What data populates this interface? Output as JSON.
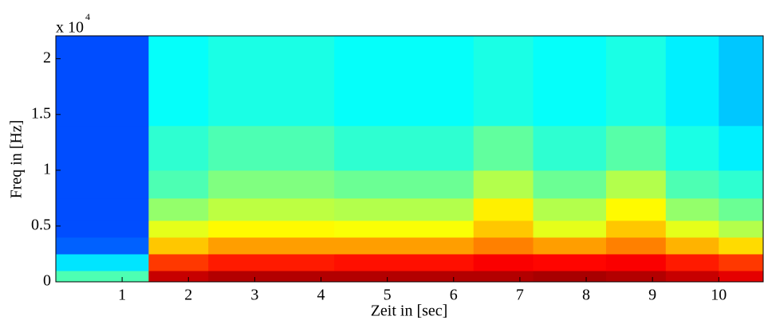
{
  "chart_data": {
    "type": "spectrogram",
    "x_label": "Zeit in [sec]",
    "y_label": "Freq in [Hz]",
    "y_scale_label": "x 10",
    "y_scale_exponent": "4",
    "xlim": [
      0,
      10.67
    ],
    "ylim": [
      0,
      22050
    ],
    "xticks": [
      1,
      2,
      3,
      4,
      5,
      6,
      7,
      8,
      9,
      10
    ],
    "yticks": [
      0,
      {
        "value": 5000,
        "label": "0.5"
      },
      {
        "value": 10000,
        "label": "1"
      },
      {
        "value": 15000,
        "label": "1.5"
      },
      {
        "value": 20000,
        "label": "2"
      }
    ],
    "colormap": "jet",
    "time_edges": [
      0,
      1.4,
      2.3,
      4.2,
      6.3,
      7.2,
      8.3,
      9.2,
      10.0,
      10.67
    ],
    "freq_edges": [
      0,
      1000,
      2500,
      4000,
      5500,
      7500,
      10000,
      14000,
      22050
    ],
    "levels": [
      [
        0.45,
        0.93,
        0.95,
        0.95,
        0.95,
        0.96,
        0.95,
        0.93,
        0.9
      ],
      [
        0.35,
        0.82,
        0.85,
        0.86,
        0.88,
        0.87,
        0.88,
        0.85,
        0.82
      ],
      [
        0.22,
        0.68,
        0.72,
        0.72,
        0.75,
        0.72,
        0.75,
        0.7,
        0.66
      ],
      [
        0.2,
        0.6,
        0.63,
        0.62,
        0.68,
        0.6,
        0.68,
        0.6,
        0.55
      ],
      [
        0.2,
        0.52,
        0.56,
        0.55,
        0.64,
        0.55,
        0.63,
        0.52,
        0.48
      ],
      [
        0.2,
        0.45,
        0.5,
        0.48,
        0.55,
        0.48,
        0.55,
        0.45,
        0.42
      ],
      [
        0.2,
        0.42,
        0.45,
        0.42,
        0.47,
        0.42,
        0.46,
        0.4,
        0.36
      ],
      [
        0.2,
        0.38,
        0.4,
        0.38,
        0.4,
        0.38,
        0.4,
        0.36,
        0.32
      ]
    ]
  }
}
